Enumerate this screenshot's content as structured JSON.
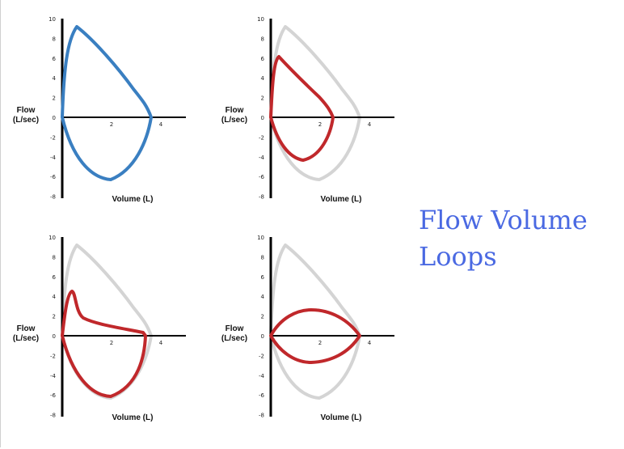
{
  "title": "Flow Volume Loops",
  "y_axis_label": [
    "Flow",
    "(L/sec)"
  ],
  "x_axis_label": "Volume (L)",
  "y_ticks": [
    "10",
    "8",
    "6",
    "4",
    "2",
    "0",
    "-2",
    "-4",
    "-6",
    "-8"
  ],
  "x_ticks": [
    "2",
    "4"
  ],
  "colors": {
    "normal": "#3a7fc1",
    "reference": "#d4d4d4",
    "abnormal": "#c0282b",
    "title": "#4a69e2"
  },
  "panels": [
    {
      "position": "top-left",
      "loop_color": "normal",
      "reference_loop": false
    },
    {
      "position": "top-right",
      "loop_color": "abnormal",
      "reference_loop": true
    },
    {
      "position": "bottom-left",
      "loop_color": "abnormal",
      "reference_loop": true
    },
    {
      "position": "bottom-right",
      "loop_color": "abnormal",
      "reference_loop": true
    }
  ]
}
